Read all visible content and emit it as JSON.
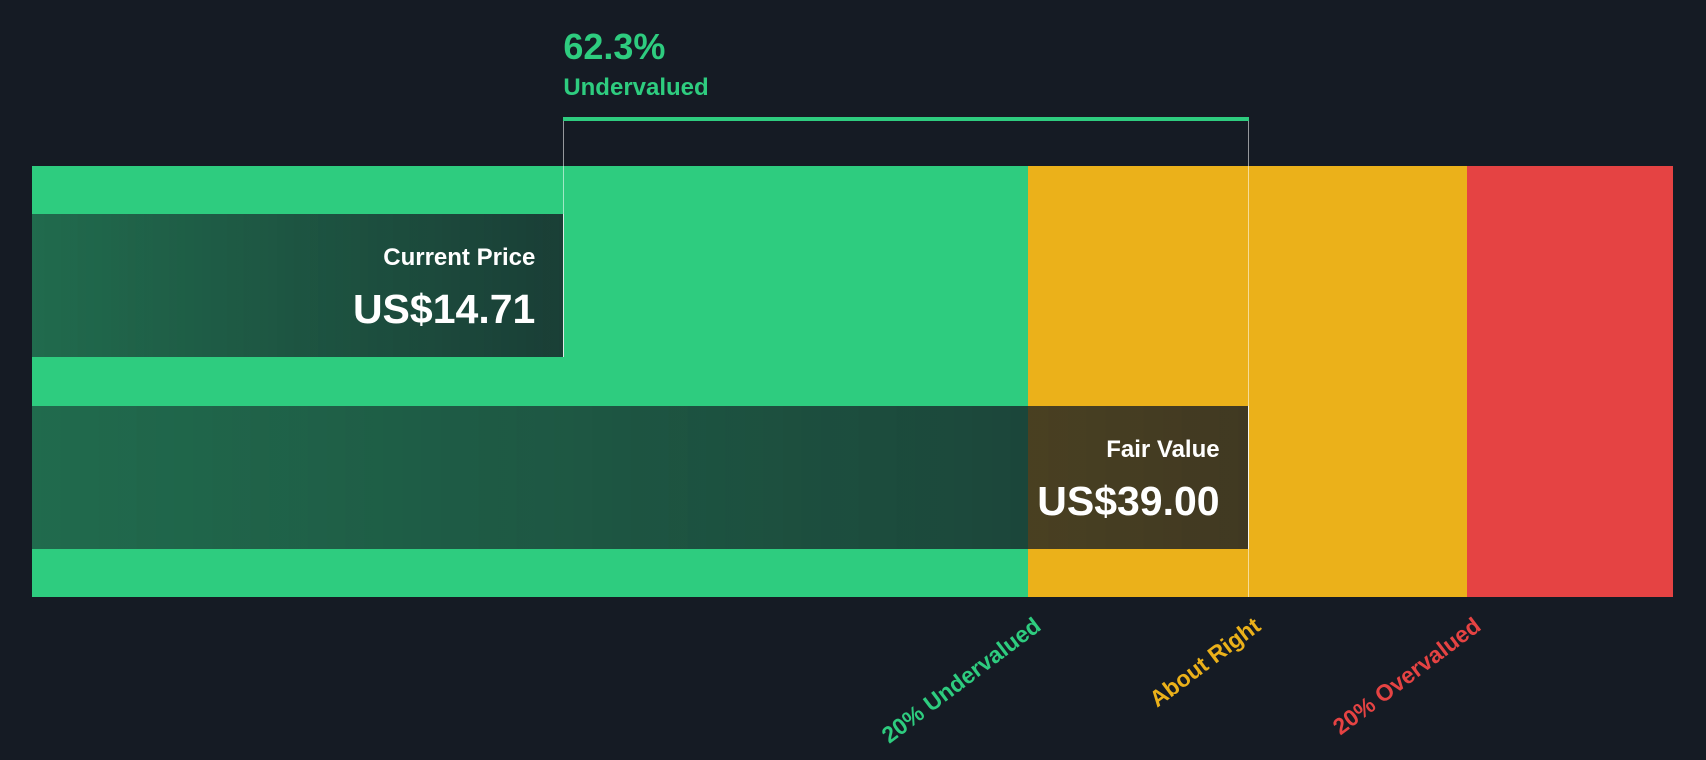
{
  "chart_data": {
    "type": "bar",
    "categories": [
      "Current Price",
      "Fair Value"
    ],
    "values": [
      14.71,
      39.0
    ],
    "value_labels": [
      "US$14.71",
      "US$39.00"
    ],
    "xlim": [
      -4.15,
      54.1
    ],
    "zones": [
      {
        "label": "20% Undervalued",
        "color": "#2ecc7f",
        "from": -4.15,
        "to": 31.2
      },
      {
        "label": "About Right",
        "color": "#ebb11a",
        "from": 31.2,
        "to": 46.8
      },
      {
        "label": "20% Overvalued",
        "color": "#e54343",
        "from": 46.8,
        "to": 54.1
      }
    ],
    "zone_label_positions": [
      31.2,
      39.0,
      46.8
    ],
    "difference": {
      "value": "62.3%",
      "label": "Undervalued",
      "color": "#2ecc7f"
    }
  },
  "colors": {
    "background": "#151b24"
  }
}
